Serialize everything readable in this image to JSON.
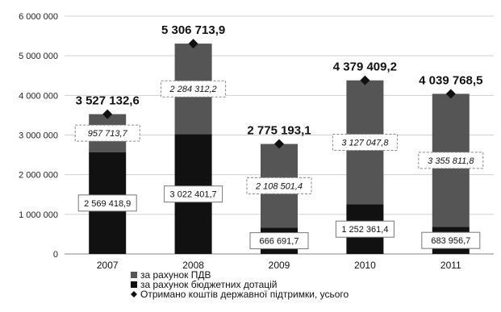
{
  "chart_data": {
    "type": "bar",
    "stacked": true,
    "categories": [
      "2007",
      "2008",
      "2009",
      "2010",
      "2011"
    ],
    "series": [
      {
        "name": "за рахунок бюджетних дотацій",
        "color": "#111111",
        "values": [
          2569418.9,
          3022401.7,
          666691.7,
          1252361.4,
          683956.7
        ],
        "labels": [
          "2 569 418,9",
          "3 022 401,7",
          "666 691,7",
          "1 252 361,4",
          "683 956,7"
        ]
      },
      {
        "name": "за рахунок ПДВ",
        "color": "#555555",
        "values": [
          957713.7,
          2284312.2,
          2108501.4,
          3127047.8,
          3355811.8
        ],
        "labels": [
          "957 713,7",
          "2 284 312,2",
          "2 108 501,4",
          "3 127 047,8",
          "3 355 811,8"
        ]
      }
    ],
    "totals": {
      "name": "Отримано коштів державної підтримки, усього",
      "values": [
        3527132.6,
        5306713.9,
        2775193.1,
        4379409.2,
        4039768.5
      ],
      "labels": [
        "3 527 132,6",
        "5 306 713,9",
        "2 775 193,1",
        "4 379 409,2",
        "4 039 768,5"
      ]
    },
    "ylim": [
      0,
      6000000
    ],
    "yticks": [
      0,
      1000000,
      2000000,
      3000000,
      4000000,
      5000000,
      6000000
    ],
    "ytick_labels": [
      "0",
      "1 000 000",
      "2 000 000",
      "3 000 000",
      "4 000 000",
      "5 000 000",
      "6 000 000"
    ],
    "grid": true,
    "legend": {
      "placement": "bottom",
      "entries": [
        {
          "label": "за рахунок ПДВ",
          "marker": "square",
          "color": "#555555"
        },
        {
          "label": "за рахунок бюджетних дотацій",
          "marker": "square",
          "color": "#111111"
        },
        {
          "label": "Отримано коштів державної підтримки, усього",
          "marker": "diamond",
          "color": "#111111"
        }
      ]
    },
    "title": "",
    "xlabel": "",
    "ylabel": ""
  }
}
